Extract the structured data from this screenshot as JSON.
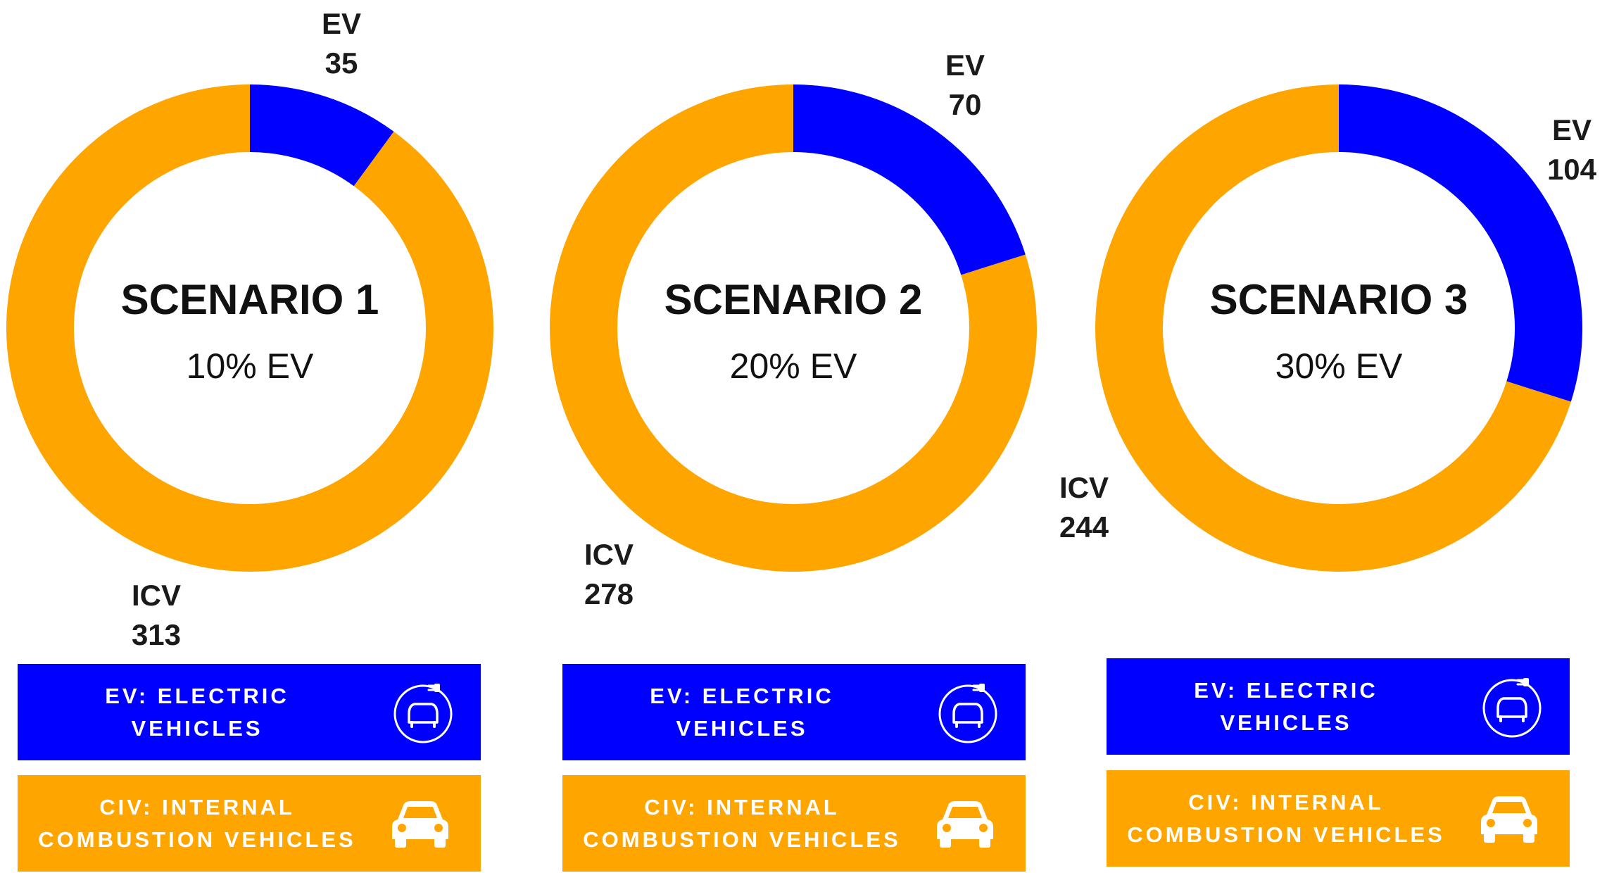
{
  "colors": {
    "ev": "#0000ff",
    "icv": "#ffa500"
  },
  "chart_data": [
    {
      "type": "pie",
      "title": "SCENARIO 1",
      "subtitle": "10% EV",
      "categories": [
        "EV",
        "ICV"
      ],
      "values": [
        35,
        313
      ],
      "labels": {
        "ev_name": "EV",
        "ev_value": "35",
        "icv_name": "ICV",
        "icv_value": "313"
      }
    },
    {
      "type": "pie",
      "title": "SCENARIO 2",
      "subtitle": "20% EV",
      "categories": [
        "EV",
        "ICV"
      ],
      "values": [
        70,
        278
      ],
      "labels": {
        "ev_name": "EV",
        "ev_value": "70",
        "icv_name": "ICV",
        "icv_value": "278"
      }
    },
    {
      "type": "pie",
      "title": "SCENARIO 3",
      "subtitle": "30% EV",
      "categories": [
        "EV",
        "ICV"
      ],
      "values": [
        104,
        244
      ],
      "labels": {
        "ev_name": "EV",
        "ev_value": "104",
        "icv_name": "ICV",
        "icv_value": "244"
      }
    }
  ],
  "legend": {
    "ev_line1": "EV: ELECTRIC",
    "ev_line2": "VEHICLES",
    "icv_line1": "CIV: INTERNAL",
    "icv_line2": "COMBUSTION VEHICLES",
    "ev_icon": "ev-charging-car-icon",
    "icv_icon": "car-icon"
  }
}
